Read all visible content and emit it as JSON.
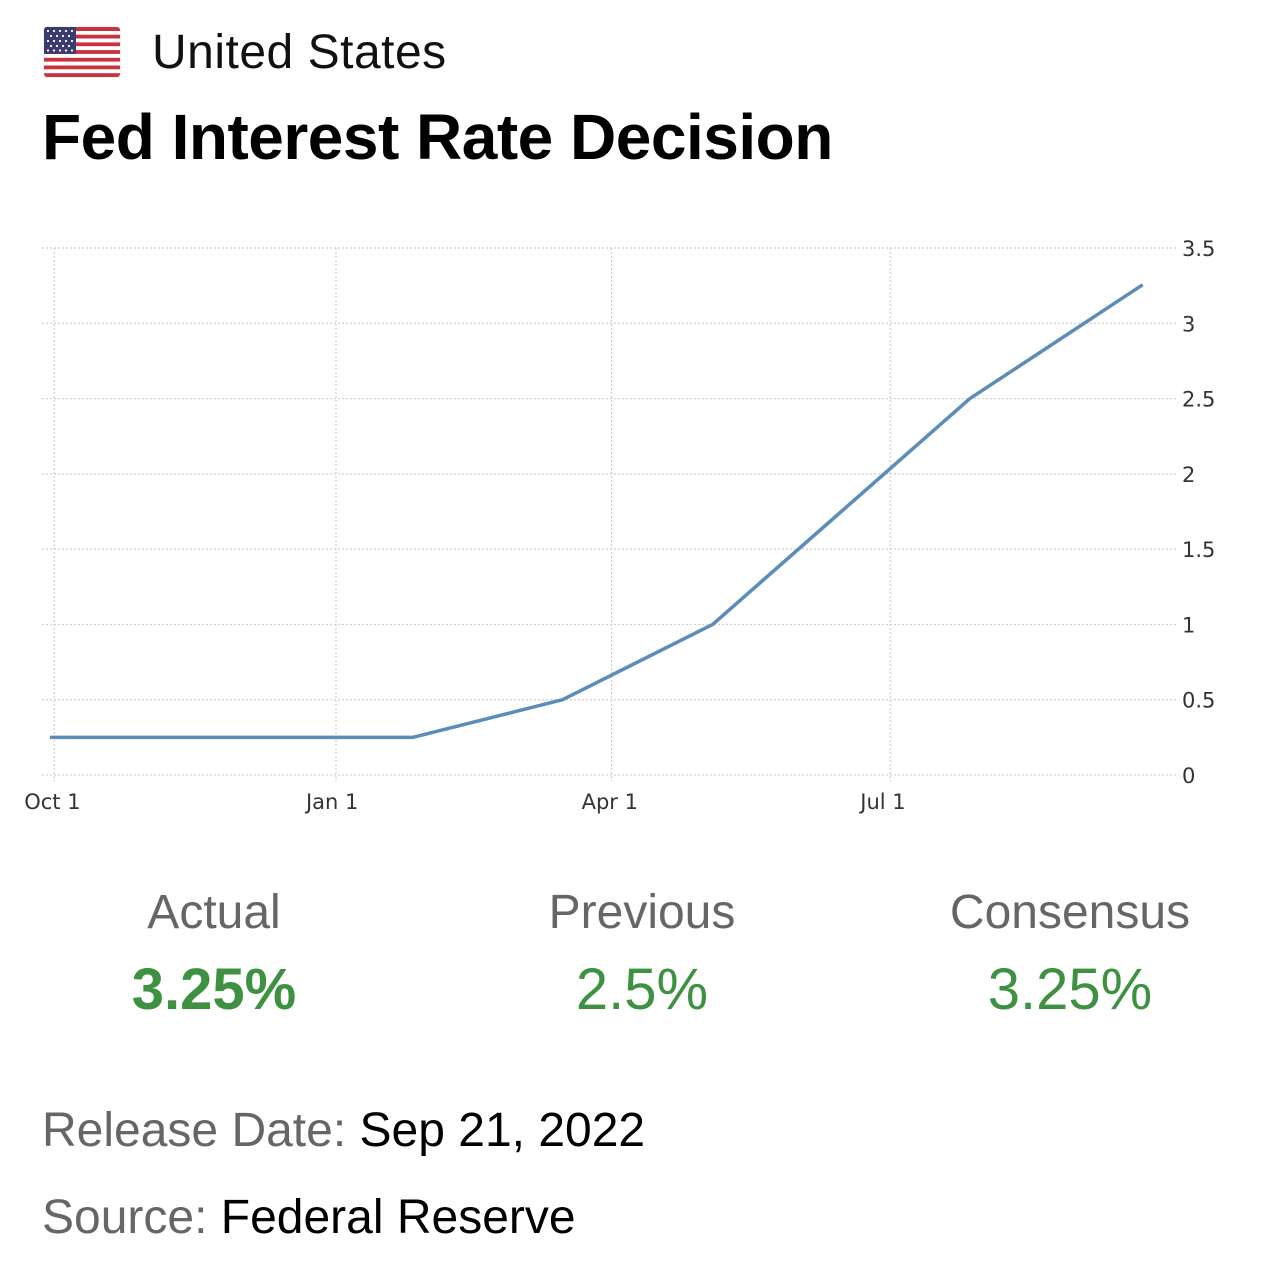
{
  "header": {
    "country": "United States",
    "flag_icon": "us-flag-icon",
    "title": "Fed Interest Rate Decision"
  },
  "chart_data": {
    "type": "line",
    "title": "",
    "xlabel": "",
    "ylabel": "",
    "x_axis": "date",
    "x_ticks": [
      {
        "date": "2021-10-01",
        "label": "Oct 1"
      },
      {
        "date": "2022-01-01",
        "label": "Jan 1"
      },
      {
        "date": "2022-04-01",
        "label": "Apr 1"
      },
      {
        "date": "2022-07-01",
        "label": "Jul 1"
      }
    ],
    "y_ticks": [
      "0",
      "0.5",
      "1",
      "1.5",
      "2",
      "2.5",
      "3",
      "3.5"
    ],
    "ylim": [
      0,
      3.5
    ],
    "xlim": [
      "2021-09-27",
      "2022-10-01"
    ],
    "y_axis_side": "right",
    "grid": true,
    "line_color": "#5b8db8",
    "series": [
      {
        "points": [
          {
            "x": "2021-09-22",
            "y": 0.25
          },
          {
            "x": "2021-11-03",
            "y": 0.25
          },
          {
            "x": "2021-12-15",
            "y": 0.25
          },
          {
            "x": "2022-01-26",
            "y": 0.25
          },
          {
            "x": "2022-03-16",
            "y": 0.5
          },
          {
            "x": "2022-05-04",
            "y": 1.0
          },
          {
            "x": "2022-06-15",
            "y": 1.75
          },
          {
            "x": "2022-07-27",
            "y": 2.5
          },
          {
            "x": "2022-09-21",
            "y": 3.25
          }
        ]
      }
    ]
  },
  "stats": {
    "actual_label": "Actual",
    "actual_value": "3.25%",
    "previous_label": "Previous",
    "previous_value": "2.5%",
    "consensus_label": "Consensus",
    "consensus_value": "3.25%",
    "value_color": "#3f9142"
  },
  "meta": {
    "release_label": "Release Date:",
    "release_value": "Sep 21, 2022",
    "source_label": "Source:",
    "source_value": "Federal Reserve"
  }
}
